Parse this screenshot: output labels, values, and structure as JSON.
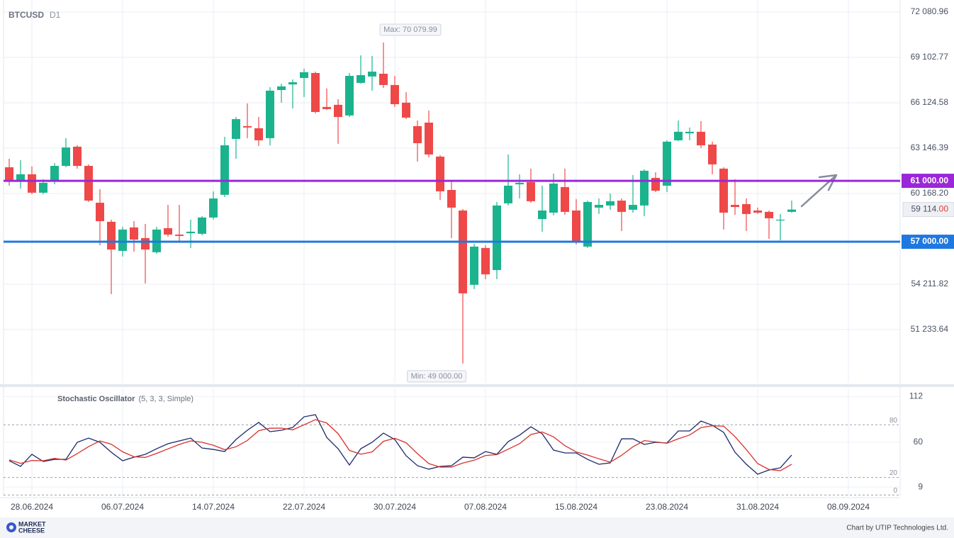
{
  "chart_data": {
    "type": "candlestick",
    "title": "BTCUSD",
    "timeframe": "D1",
    "x": [
      "26.06.2024",
      "27.06.2024",
      "28.06.2024",
      "29.06.2024",
      "30.06.2024",
      "01.07.2024",
      "02.07.2024",
      "03.07.2024",
      "04.07.2024",
      "05.07.2024",
      "06.07.2024",
      "07.07.2024",
      "08.07.2024",
      "09.07.2024",
      "10.07.2024",
      "11.07.2024",
      "12.07.2024",
      "13.07.2024",
      "14.07.2024",
      "15.07.2024",
      "16.07.2024",
      "17.07.2024",
      "18.07.2024",
      "19.07.2024",
      "20.07.2024",
      "21.07.2024",
      "22.07.2024",
      "23.07.2024",
      "24.07.2024",
      "25.07.2024",
      "26.07.2024",
      "27.07.2024",
      "28.07.2024",
      "29.07.2024",
      "30.07.2024",
      "31.07.2024",
      "01.08.2024",
      "02.08.2024",
      "03.08.2024",
      "04.08.2024",
      "05.08.2024",
      "06.08.2024",
      "07.08.2024",
      "08.08.2024",
      "09.08.2024",
      "10.08.2024",
      "11.08.2024",
      "12.08.2024",
      "13.08.2024",
      "14.08.2024",
      "15.08.2024",
      "16.08.2024",
      "17.08.2024",
      "18.08.2024",
      "19.08.2024",
      "20.08.2024",
      "21.08.2024",
      "22.08.2024",
      "23.08.2024",
      "24.08.2024",
      "25.08.2024",
      "26.08.2024",
      "27.08.2024",
      "28.08.2024",
      "29.08.2024",
      "30.08.2024",
      "31.08.2024",
      "01.09.2024",
      "02.09.2024",
      "03.09.2024"
    ],
    "open": [
      61890,
      61050,
      61430,
      60220,
      60960,
      61980,
      63240,
      61980,
      59560,
      58310,
      56400,
      57940,
      57240,
      56310,
      57890,
      57470,
      57560,
      57520,
      58590,
      60080,
      63750,
      64590,
      64450,
      63800,
      66960,
      67330,
      67750,
      68080,
      65850,
      65990,
      65290,
      67430,
      67850,
      68030,
      67290,
      66130,
      64590,
      64820,
      62590,
      60400,
      59050,
      54170,
      56590,
      55140,
      59520,
      60770,
      60910,
      58490,
      58910,
      60590,
      59050,
      56680,
      59240,
      59380,
      59700,
      59100,
      59380,
      61190,
      60680,
      63660,
      64120,
      64220,
      63380,
      61800,
      59420,
      59470,
      59050,
      58960,
      58400,
      58960
    ],
    "high": [
      62450,
      62360,
      61940,
      61100,
      62170,
      63800,
      63330,
      62080,
      60450,
      58450,
      57980,
      58350,
      58170,
      57980,
      59420,
      59420,
      58450,
      58680,
      60310,
      63890,
      65190,
      66080,
      65190,
      67150,
      67380,
      67660,
      68360,
      68170,
      67060,
      66360,
      68080,
      69240,
      69200,
      70079.99,
      67890,
      66820,
      64960,
      65610,
      62680,
      60960,
      59140,
      56860,
      56770,
      59610,
      62730,
      61430,
      61800,
      60680,
      61470,
      61800,
      59800,
      59700,
      59840,
      60170,
      59840,
      61380,
      61750,
      61560,
      63660,
      64960,
      64500,
      64920,
      63570,
      61890,
      61100,
      59840,
      59240,
      59050,
      58820,
      59700
    ],
    "low": [
      60680,
      60490,
      60120,
      60120,
      60770,
      61890,
      61800,
      59610,
      56770,
      53560,
      56030,
      56350,
      54260,
      56210,
      57330,
      57050,
      56590,
      57420,
      58450,
      59940,
      62450,
      63800,
      63290,
      63330,
      66130,
      65750,
      66500,
      65430,
      65660,
      63430,
      65190,
      67380,
      66920,
      67100,
      65850,
      65050,
      62260,
      62540,
      59750,
      57240,
      49000,
      53890,
      54540,
      54540,
      59380,
      59840,
      59560,
      57660,
      58730,
      58770,
      56820,
      56590,
      58820,
      59100,
      57700,
      58910,
      58680,
      60260,
      60260,
      63610,
      63660,
      63150,
      61430,
      57800,
      58770,
      57700,
      58820,
      57190,
      57100,
      58910
    ],
    "close": [
      60960,
      61430,
      60220,
      60870,
      61980,
      63190,
      61980,
      59700,
      58350,
      56490,
      57800,
      57140,
      56490,
      57800,
      57470,
      57380,
      57660,
      58590,
      59840,
      63330,
      65050,
      64500,
      63660,
      66920,
      67200,
      67470,
      68130,
      65520,
      65710,
      65190,
      67890,
      67940,
      68170,
      67290,
      66030,
      65150,
      63470,
      62730,
      60310,
      59240,
      53610,
      56680,
      54860,
      59380,
      60680,
      60870,
      59660,
      59050,
      60820,
      58960,
      56960,
      59610,
      59420,
      59660,
      58960,
      59420,
      61660,
      60350,
      63570,
      64220,
      64220,
      63330,
      62080,
      58910,
      59280,
      58820,
      58910,
      58540,
      58450,
      59114
    ],
    "colors": {
      "up": "#1bb38e",
      "down": "#ef4848"
    },
    "ylim": [
      47740,
      72872
    ],
    "yticks": [
      {
        "value": 72080.96,
        "label": "72 080.96"
      },
      {
        "value": 69102.77,
        "label": "69 102.77"
      },
      {
        "value": 66124.58,
        "label": "66 124.58"
      },
      {
        "value": 63146.39,
        "label": "63 146.39"
      },
      {
        "value": 60168.2,
        "label": "60 168.20"
      },
      {
        "value": 54211.82,
        "label": "54 211.82"
      },
      {
        "value": 51233.64,
        "label": "51 233.64"
      }
    ],
    "xticks": [
      "28.06.2024",
      "06.07.2024",
      "14.07.2024",
      "22.07.2024",
      "30.07.2024",
      "07.08.2024",
      "15.08.2024",
      "23.08.2024",
      "31.08.2024",
      "08.09.2024"
    ],
    "grid": true,
    "levels": [
      {
        "value": 61000,
        "label": "61 000.00",
        "color": "#9b27d8"
      },
      {
        "value": 57000,
        "label": "57 000.00",
        "color": "#1f78e0"
      }
    ],
    "last_price": {
      "value": 59114,
      "label_main": "59 114.",
      "label_tail": "00"
    },
    "annotations": [
      {
        "value": 70079.99,
        "label": "Max: 70 079.99",
        "kind": "high"
      },
      {
        "value": 49000,
        "label": "Min: 49 000.00",
        "kind": "low"
      }
    ],
    "indicator": {
      "name": "Stochastic Oscillator",
      "params": "(5, 3, 3, Simple)",
      "ylim": [
        -1.3,
        121.3
      ],
      "yticks": [
        112,
        60,
        9
      ],
      "levels": [
        80,
        20,
        0
      ],
      "series": [
        {
          "color": "#1b2a6b",
          "values": [
            39.0,
            32.6,
            46.3,
            38.2,
            40.6,
            40.6,
            60,
            64.8,
            60,
            48.7,
            39.0,
            43.1,
            46.3,
            52.7,
            58.4,
            61.6,
            64.8,
            53.5,
            51.9,
            49.5,
            63.2,
            73.7,
            82.6,
            72.1,
            73.7,
            76.9,
            89.0,
            91.5,
            65.6,
            52.7,
            34.2,
            52.7,
            60,
            70.5,
            63.2,
            44.7,
            33.4,
            29.4,
            32.6,
            33.4,
            43.1,
            42.3,
            49.5,
            46.3,
            60.8,
            68.1,
            77.7,
            69.7,
            51.1,
            47.9,
            47.9,
            40.6,
            35.0,
            36.6,
            64.0,
            64.0,
            57.6,
            60,
            59.2,
            72.9,
            72.9,
            84.2,
            79.4,
            71.3,
            48.7,
            35.0,
            23.7,
            28.5,
            31.0,
            45.5
          ]
        },
        {
          "color": "#d8322c",
          "values": [
            40.0,
            36.0,
            39.3,
            39.0,
            41.7,
            39.8,
            47.1,
            55.1,
            61.6,
            57.8,
            49.2,
            43.6,
            42.8,
            47.4,
            52.5,
            57.6,
            61.6,
            60.0,
            56.7,
            51.6,
            54.9,
            62.1,
            73.2,
            76.1,
            76.1,
            74.2,
            79.9,
            85.8,
            82.0,
            69.9,
            50.8,
            46.5,
            49.0,
            61.1,
            64.6,
            59.5,
            47.1,
            35.8,
            31.8,
            31.8,
            36.4,
            39.6,
            45.0,
            46.0,
            52.2,
            58.4,
            68.9,
            71.8,
            66.2,
            56.2,
            49.0,
            45.5,
            41.2,
            37.4,
            45.2,
            54.9,
            61.9,
            60.5,
            58.9,
            64.0,
            68.3,
            76.7,
            78.8,
            78.3,
            66.5,
            51.7,
            35.8,
            29.1,
            27.7,
            35.0
          ]
        }
      ]
    }
  },
  "footer": {
    "logo_top": "MARKET",
    "logo_bottom": "CHEESE",
    "credit": "Chart by UTIP Technologies Ltd."
  }
}
